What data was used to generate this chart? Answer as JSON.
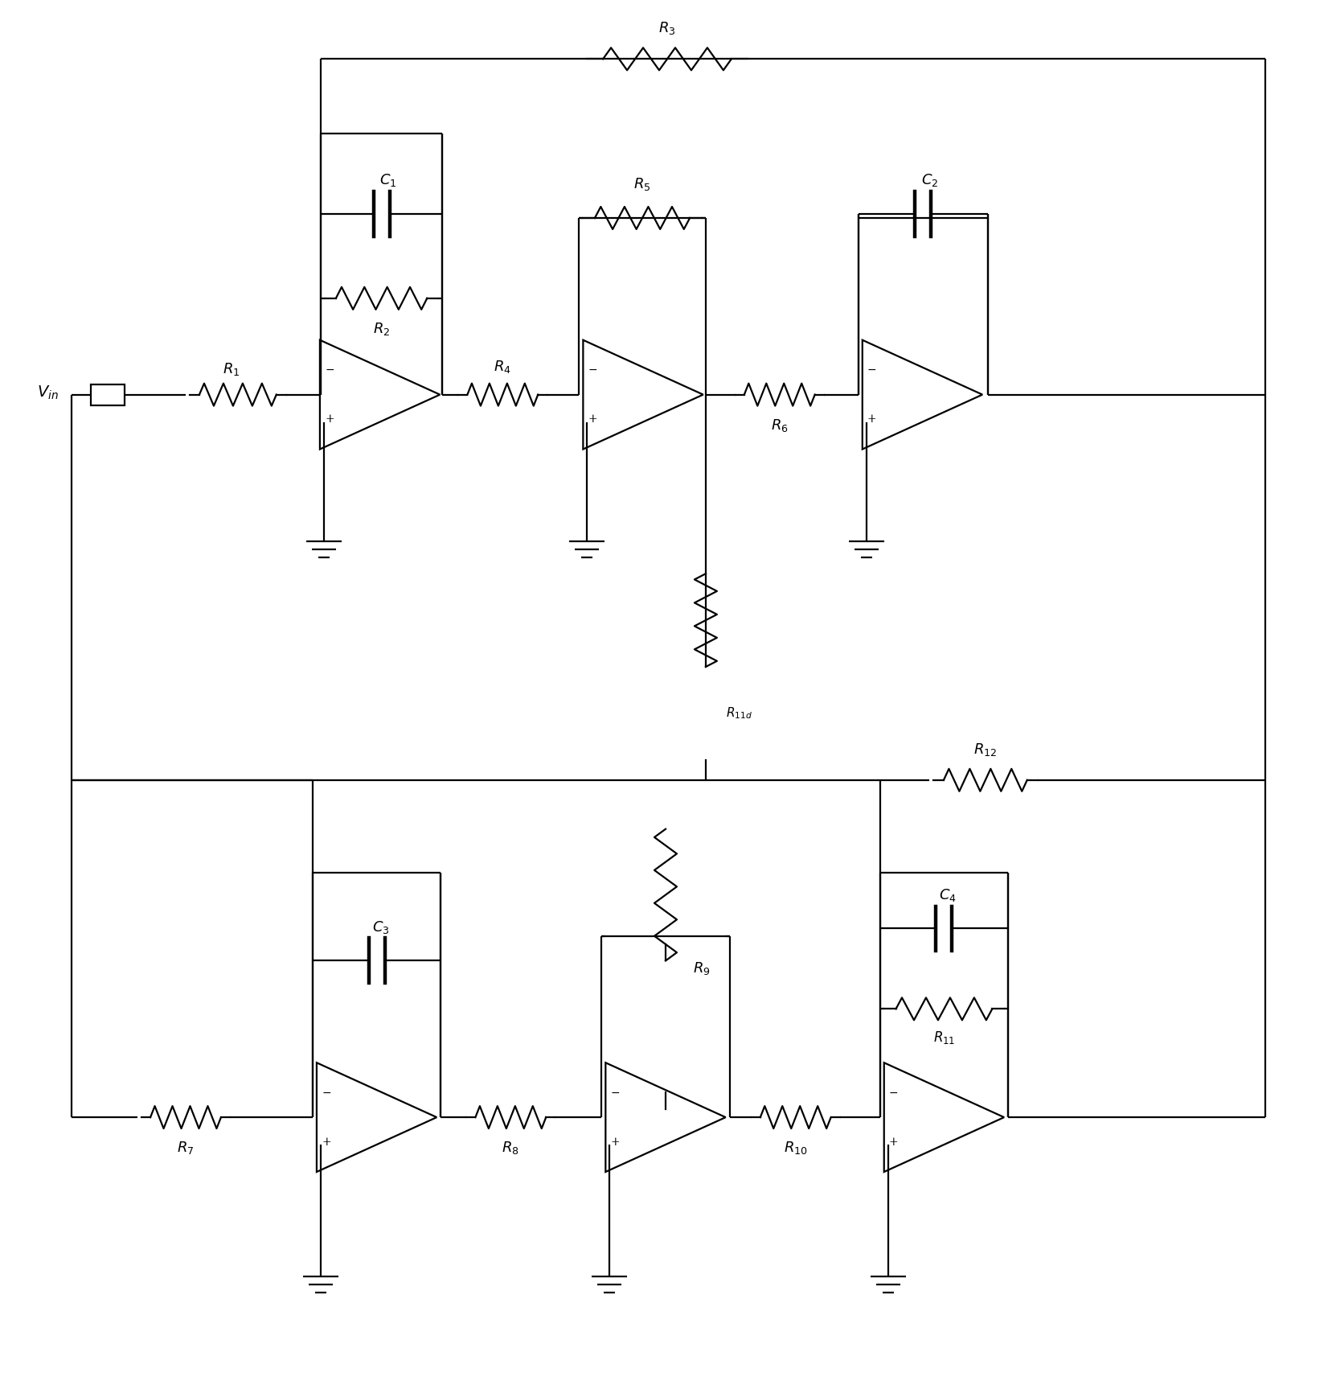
{
  "bg_color": "#ffffff",
  "line_color": "#000000",
  "lw": 1.6,
  "fig_width": 16.57,
  "fig_height": 17.12
}
